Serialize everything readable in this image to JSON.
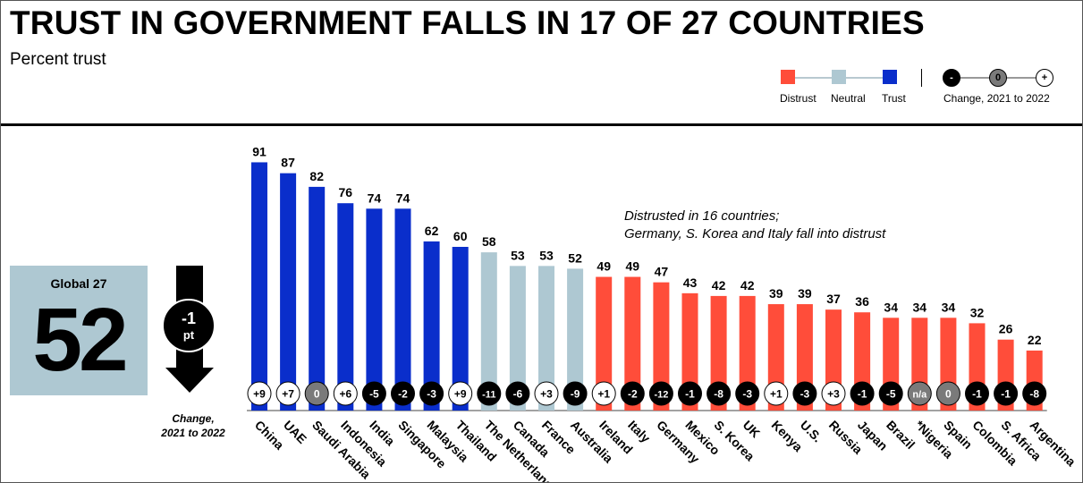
{
  "title": "TRUST IN GOVERNMENT FALLS IN 17 OF 27 COUNTRIES",
  "subtitle": "Percent trust",
  "legend": {
    "distrust_label": "Distrust",
    "neutral_label": "Neutral",
    "trust_label": "Trust",
    "change_label": "Change, 2021 to 2022",
    "minus_symbol": "-",
    "zero_symbol": "0",
    "plus_symbol": "+"
  },
  "global": {
    "label": "Global 27",
    "value": "52",
    "change_value": "-1",
    "change_unit": "pt",
    "change_note_line1": "Change,",
    "change_note_line2": "2021 to 2022"
  },
  "annotation": {
    "line1": "Distrusted in 16 countries;",
    "line2": "Germany, S. Korea and Italy fall into distrust"
  },
  "colors": {
    "trust": "#0a2ecb",
    "neutral": "#aec8d2",
    "distrust": "#ff4d3a",
    "negative_change": "#000000",
    "positive_change": "#ffffff",
    "zero_change": "#7a7a7a"
  },
  "chart_data": {
    "type": "bar",
    "title": "TRUST IN GOVERNMENT FALLS IN 17 OF 27 COUNTRIES",
    "ylabel": "Percent trust",
    "ylim": [
      0,
      100
    ],
    "categories": [
      "China",
      "UAE",
      "Saudi Arabia",
      "Indonesia",
      "India",
      "Singapore",
      "Malaysia",
      "Thailand",
      "The Netherlands",
      "Canada",
      "France",
      "Australia",
      "Ireland",
      "Italy",
      "Germany",
      "Mexico",
      "S. Korea",
      "UK",
      "Kenya",
      "U.S.",
      "Russia",
      "Japan",
      "Brazil",
      "*Nigeria",
      "Spain",
      "Colombia",
      "S. Africa",
      "Argentina"
    ],
    "values": [
      91,
      87,
      82,
      76,
      74,
      74,
      62,
      60,
      58,
      53,
      53,
      52,
      49,
      49,
      47,
      43,
      42,
      42,
      39,
      39,
      37,
      36,
      34,
      34,
      34,
      32,
      26,
      22
    ],
    "categories_trust_level": [
      "trust",
      "trust",
      "trust",
      "trust",
      "trust",
      "trust",
      "trust",
      "trust",
      "neutral",
      "neutral",
      "neutral",
      "neutral",
      "distrust",
      "distrust",
      "distrust",
      "distrust",
      "distrust",
      "distrust",
      "distrust",
      "distrust",
      "distrust",
      "distrust",
      "distrust",
      "distrust",
      "distrust",
      "distrust",
      "distrust",
      "distrust"
    ],
    "change_2021_to_2022": [
      "+9",
      "+7",
      "0",
      "+6",
      "-5",
      "-2",
      "-3",
      "+9",
      "-11",
      "-6",
      "+3",
      "-9",
      "+1",
      "-2",
      "-12",
      "-1",
      "-8",
      "-3",
      "+1",
      "-3",
      "+3",
      "-1",
      "-5",
      "n/a",
      "0",
      "-1",
      "-1",
      "-8"
    ]
  }
}
